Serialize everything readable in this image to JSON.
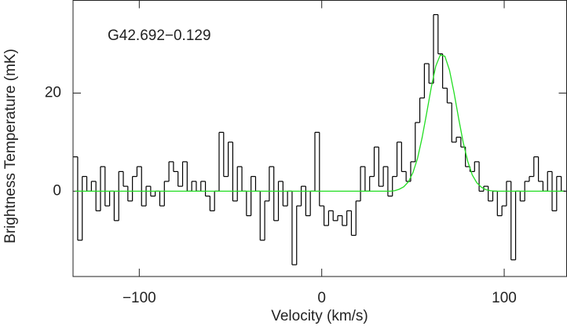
{
  "chart_data": {
    "type": "step",
    "annotation": "G42.692−0.129",
    "xlabel": "Velocity (km/s)",
    "ylabel": "Brightness Temperature (mK)",
    "xlim": [
      -136.3,
      134.2
    ],
    "ylim": [
      -17.4,
      38.9
    ],
    "xticks": [
      {
        "value": -100,
        "label": "−100"
      },
      0,
      100
    ],
    "yticks": [
      0,
      20
    ],
    "x": [
      -135,
      -132.5,
      -130,
      -127.5,
      -125,
      -122.5,
      -120,
      -117.5,
      -115,
      -112.5,
      -110,
      -107.5,
      -105,
      -102.5,
      -100,
      -97.5,
      -95,
      -92.5,
      -90,
      -87.5,
      -85,
      -82.5,
      -80,
      -77.5,
      -75,
      -72.5,
      -70,
      -67.5,
      -65,
      -62.5,
      -60,
      -57.5,
      -55,
      -52.5,
      -50,
      -47.5,
      -45,
      -42.5,
      -40,
      -37.5,
      -35,
      -32.5,
      -30,
      -27.5,
      -25,
      -22.5,
      -20,
      -17.5,
      -15,
      -12.5,
      -10,
      -7.5,
      -5,
      -2.5,
      0,
      2.5,
      5,
      7.5,
      10,
      12.5,
      15,
      17.5,
      20,
      22.5,
      25,
      27.5,
      30,
      32.5,
      35,
      37.5,
      40,
      42.5,
      45,
      47.5,
      50,
      52.5,
      55,
      57.5,
      60,
      62.5,
      65,
      67.5,
      70,
      72.5,
      75,
      77.5,
      80,
      82.5,
      85,
      87.5,
      90,
      92.5,
      95,
      97.5,
      100,
      102.5,
      105,
      107.5,
      110,
      112.5,
      115,
      117.5,
      120,
      122.5,
      125,
      127.5,
      130,
      132.5
    ],
    "series": [
      {
        "color": "#000000",
        "style": "step",
        "values": [
          7,
          -10,
          3,
          0,
          2,
          -4,
          5,
          -3,
          0,
          -6,
          4,
          1,
          -2,
          3,
          5,
          -3,
          1,
          -1,
          0,
          -3,
          2,
          6,
          4,
          1,
          6,
          0,
          2,
          0,
          2,
          -1,
          -4,
          0,
          12,
          3,
          10,
          -2,
          5,
          0,
          -5,
          3,
          0,
          -10,
          -2,
          5,
          -6,
          2,
          -3,
          0,
          -15,
          -3,
          1,
          -5,
          0,
          12,
          -3,
          -7,
          -4,
          -6,
          -5,
          -7,
          -4,
          -9,
          -2,
          5,
          0,
          3,
          9,
          1,
          5,
          -1,
          3,
          10,
          4,
          2,
          6,
          14,
          19,
          26,
          22,
          36,
          28,
          21,
          18,
          10,
          11,
          9,
          5,
          4,
          6,
          0,
          1,
          -2,
          0,
          -5,
          -3,
          2,
          -14,
          0,
          -2,
          2,
          3,
          7,
          2,
          0,
          4,
          -4,
          3,
          0
        ]
      },
      {
        "color": "#22dd22",
        "style": "line",
        "values": [
          0,
          0,
          0,
          0,
          0,
          0,
          0,
          0,
          0,
          0,
          0,
          0,
          0,
          0,
          0,
          0,
          0,
          0,
          0,
          0,
          0,
          0,
          0,
          0,
          0,
          0,
          0,
          0,
          0,
          0,
          0,
          0,
          0,
          0,
          0,
          0,
          0,
          0,
          0,
          0,
          0,
          0,
          0,
          0,
          0,
          0,
          0,
          0,
          0,
          0,
          0,
          0,
          0,
          0,
          0,
          0,
          0,
          0,
          0,
          0,
          0,
          0,
          0,
          0,
          0,
          0,
          0,
          0,
          0,
          0,
          0.1,
          0.4,
          0.9,
          1.9,
          3.8,
          6.7,
          10.9,
          15.9,
          21.1,
          25.5,
          27.8,
          27.5,
          24.7,
          20.1,
          14.9,
          10,
          6.1,
          3.3,
          1.7,
          0.8,
          0.3,
          0.1,
          0,
          0,
          0,
          0,
          0,
          0,
          0,
          0,
          0,
          0,
          0,
          0,
          0,
          0,
          0,
          0
        ]
      }
    ]
  }
}
